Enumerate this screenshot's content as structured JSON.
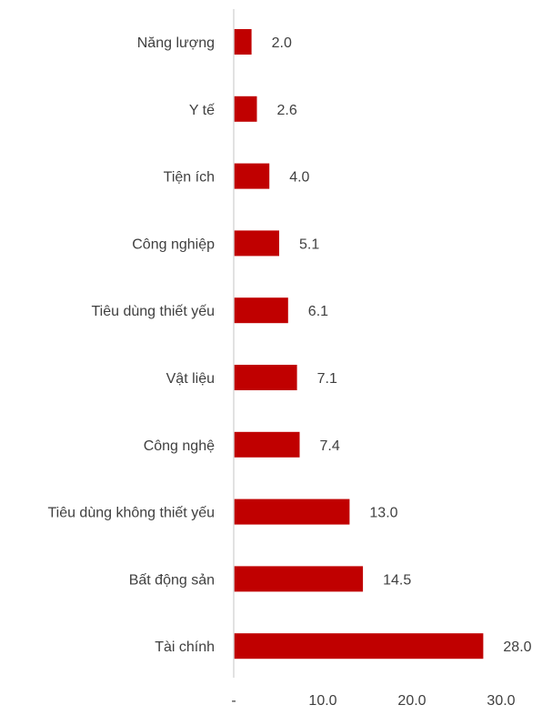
{
  "chart_data": {
    "type": "bar",
    "orientation": "horizontal",
    "categories": [
      "Năng lượng",
      "Y tế",
      "Tiện ích",
      "Công nghiệp",
      "Tiêu dùng thiết yếu",
      "Vật liệu",
      "Công nghệ",
      "Tiêu dùng không thiết yếu",
      "Bất động sản",
      "Tài chính"
    ],
    "values": [
      2.0,
      2.6,
      4.0,
      5.1,
      6.1,
      7.1,
      7.4,
      13.0,
      14.5,
      28.0
    ],
    "value_labels": [
      "2.0",
      "2.6",
      "4.0",
      "5.1",
      "6.1",
      "7.1",
      "7.4",
      "13.0",
      "14.5",
      "28.0"
    ],
    "xlim": [
      0,
      30
    ],
    "x_ticks": [
      0,
      10,
      20,
      30
    ],
    "x_tick_labels": [
      "-",
      "10.0",
      "20.0",
      "30.0"
    ],
    "title": "",
    "xlabel": "",
    "ylabel": "",
    "grid": false,
    "bar_color": "#c00000",
    "axis_color": "#d9d9d9",
    "text_color": "#404040"
  }
}
